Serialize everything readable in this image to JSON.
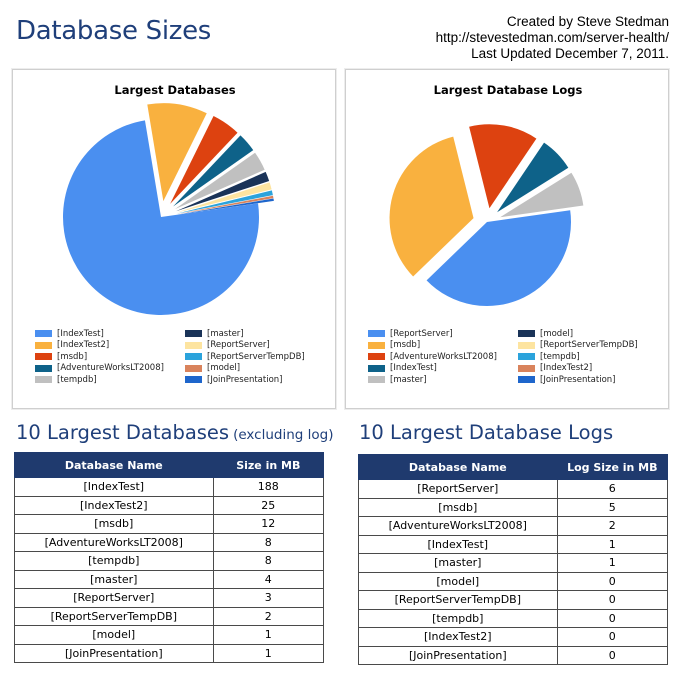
{
  "header": {
    "title": "Database Sizes",
    "credits": [
      "Created by Steve Stedman",
      "http://stevestedman.com/server-health/",
      "Last Updated December 7, 2011."
    ]
  },
  "chart_data": [
    {
      "type": "pie",
      "title": "Largest Databases",
      "legend_position": "bottom",
      "slices": [
        {
          "label": "[IndexTest]",
          "value": 188,
          "color": "#4a8ff0"
        },
        {
          "label": "[IndexTest2]",
          "value": 25,
          "color": "#f9b13f"
        },
        {
          "label": "[msdb]",
          "value": 12,
          "color": "#dd4210"
        },
        {
          "label": "[AdventureWorksLT2008]",
          "value": 8,
          "color": "#0e6289"
        },
        {
          "label": "[tempdb]",
          "value": 8,
          "color": "#c0c0c0"
        },
        {
          "label": "[master]",
          "value": 4,
          "color": "#1a3358"
        },
        {
          "label": "[ReportServer]",
          "value": 3,
          "color": "#fde4a0"
        },
        {
          "label": "[ReportServerTempDB]",
          "value": 2,
          "color": "#2ba3dc"
        },
        {
          "label": "[model]",
          "value": 1,
          "color": "#d9835c"
        },
        {
          "label": "[JoinPresentation]",
          "value": 1,
          "color": "#1e66cc"
        }
      ]
    },
    {
      "type": "pie",
      "title": "Largest Database Logs",
      "legend_position": "bottom",
      "slices": [
        {
          "label": "[ReportServer]",
          "value": 6,
          "color": "#4a8ff0"
        },
        {
          "label": "[msdb]",
          "value": 5,
          "color": "#f9b13f"
        },
        {
          "label": "[AdventureWorksLT2008]",
          "value": 2,
          "color": "#dd4210"
        },
        {
          "label": "[IndexTest]",
          "value": 1,
          "color": "#0e6289"
        },
        {
          "label": "[master]",
          "value": 1,
          "color": "#c0c0c0"
        },
        {
          "label": "[model]",
          "value": 0,
          "color": "#1a3358"
        },
        {
          "label": "[ReportServerTempDB]",
          "value": 0,
          "color": "#fde4a0"
        },
        {
          "label": "[tempdb]",
          "value": 0,
          "color": "#2ba3dc"
        },
        {
          "label": "[IndexTest2]",
          "value": 0,
          "color": "#d9835c"
        },
        {
          "label": "[JoinPresentation]",
          "value": 0,
          "color": "#1e66cc"
        }
      ]
    }
  ],
  "sections": {
    "databases": {
      "title": "10 Largest Databases",
      "subtitle": "(excluding log)"
    },
    "logs": {
      "title": "10 Largest Database Logs"
    }
  },
  "tables": {
    "databases": {
      "headers": [
        "Database Name",
        "Size in MB"
      ],
      "rows": [
        [
          "[IndexTest]",
          "188"
        ],
        [
          "[IndexTest2]",
          "25"
        ],
        [
          "[msdb]",
          "12"
        ],
        [
          "[AdventureWorksLT2008]",
          "8"
        ],
        [
          "[tempdb]",
          "8"
        ],
        [
          "[master]",
          "4"
        ],
        [
          "[ReportServer]",
          "3"
        ],
        [
          "[ReportServerTempDB]",
          "2"
        ],
        [
          "[model]",
          "1"
        ],
        [
          "[JoinPresentation]",
          "1"
        ]
      ]
    },
    "logs": {
      "headers": [
        "Database Name",
        "Log Size in MB"
      ],
      "rows": [
        [
          "[ReportServer]",
          "6"
        ],
        [
          "[msdb]",
          "5"
        ],
        [
          "[AdventureWorksLT2008]",
          "2"
        ],
        [
          "[IndexTest]",
          "1"
        ],
        [
          "[master]",
          "1"
        ],
        [
          "[model]",
          "0"
        ],
        [
          "[ReportServerTempDB]",
          "0"
        ],
        [
          "[tempdb]",
          "0"
        ],
        [
          "[IndexTest2]",
          "0"
        ],
        [
          "[JoinPresentation]",
          "0"
        ]
      ]
    }
  }
}
